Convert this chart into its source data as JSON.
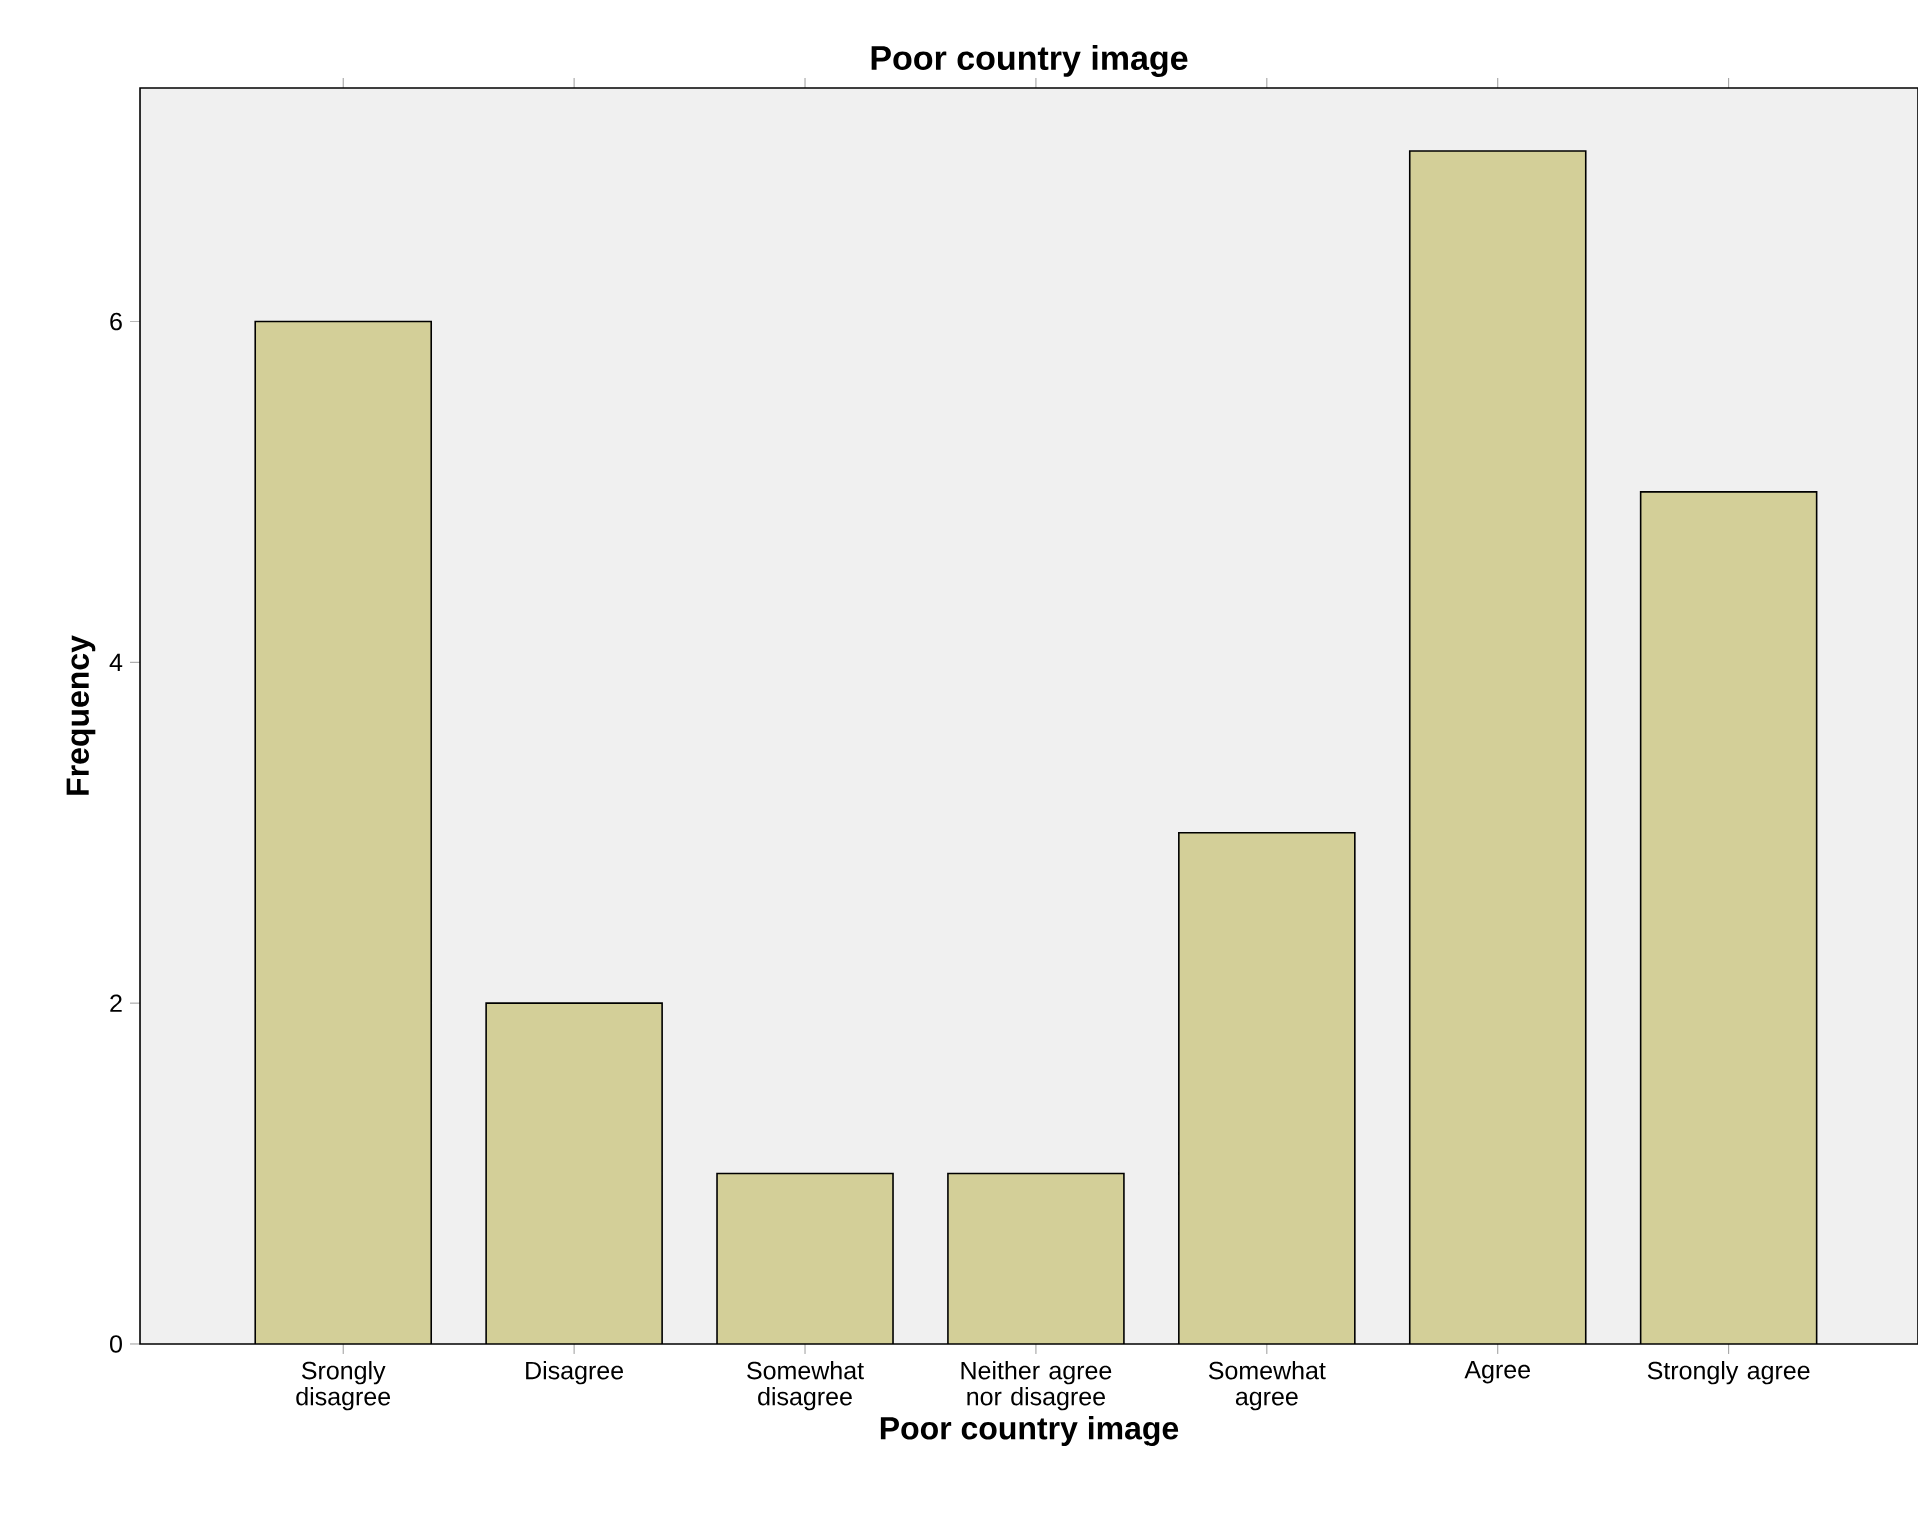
{
  "chart_data": {
    "type": "bar",
    "title": "Poor country image",
    "xlabel": "Poor country image",
    "ylabel": "Frequency",
    "categories": [
      "Srongly disagree",
      "Disagree",
      "Somewhat disagree",
      "Neither agree nor disagree",
      "Somewhat agree",
      "Agree",
      "Strongly agree"
    ],
    "values": [
      6,
      2,
      1,
      1,
      3,
      7,
      5
    ],
    "color": "#d3cf98",
    "ylim": [
      0,
      7.37
    ],
    "yticks": [
      0,
      2,
      4,
      6
    ]
  }
}
